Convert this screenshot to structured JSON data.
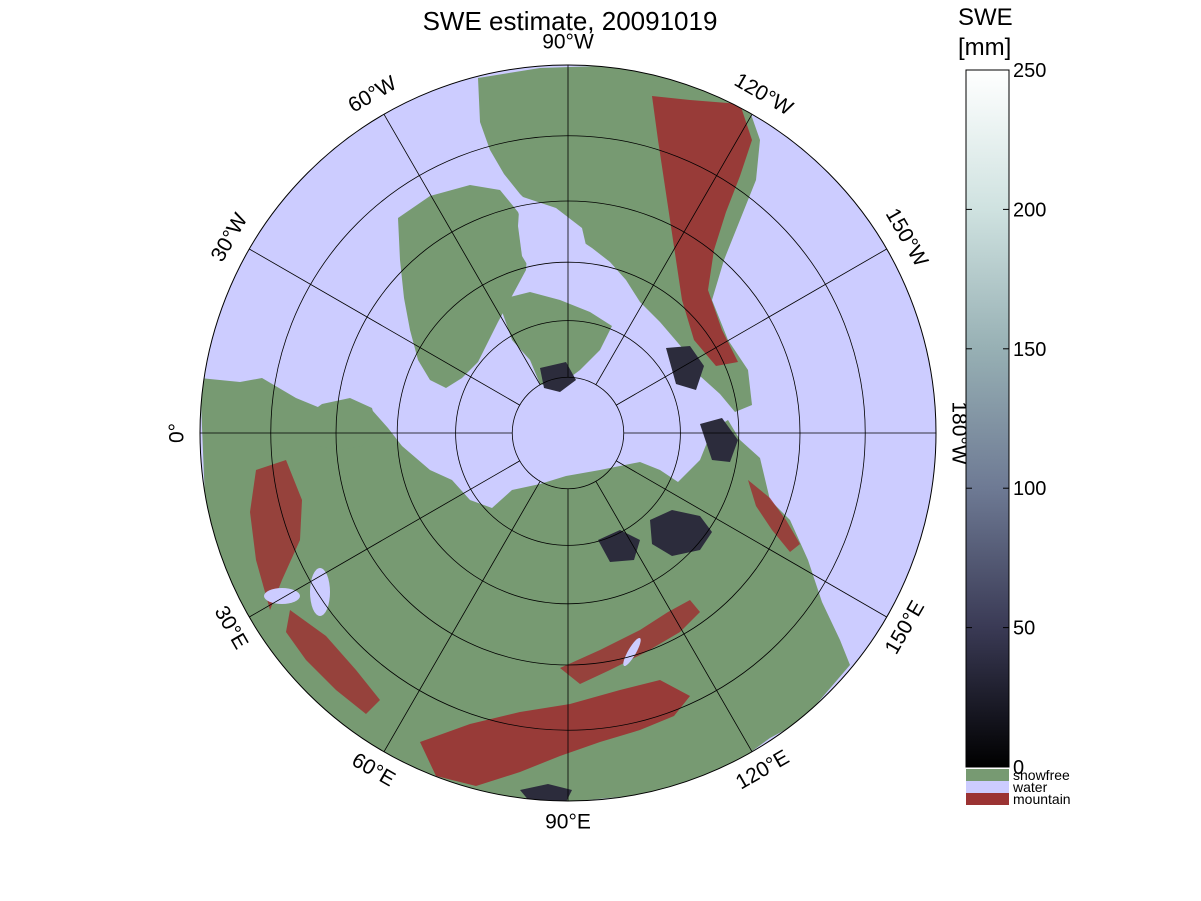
{
  "title": "SWE estimate, 20091019",
  "colorbar": {
    "title_lines": [
      "SWE",
      "[mm]"
    ],
    "ticks": [
      0,
      50,
      100,
      150,
      200,
      250
    ],
    "range": [
      0,
      250
    ],
    "gradient_colors": [
      "#000000",
      "#3a3a55",
      "#6e7a94",
      "#97b0b4",
      "#cfe2e0",
      "#ffffff"
    ],
    "categories": [
      {
        "label": "snowfree",
        "color": "#779a72"
      },
      {
        "label": "water",
        "color": "#ccccff"
      },
      {
        "label": "mountain",
        "color": "#9b3333"
      }
    ]
  },
  "map": {
    "projection": "north-polar-stereographic",
    "ocean_color": "#ccccff",
    "land_color": "#779a72",
    "mountain_color": "#9b3333",
    "snow_color": "#2c2c3c",
    "latitude_circles": [
      80,
      70,
      60,
      50,
      40,
      30
    ],
    "meridian_labels": [
      {
        "text": "90°W",
        "angle": -90
      },
      {
        "text": "120°W",
        "angle": -60
      },
      {
        "text": "150°W",
        "angle": -30
      },
      {
        "text": "180°W",
        "angle": 0
      },
      {
        "text": "150°E",
        "angle": 30
      },
      {
        "text": "120°E",
        "angle": 60
      },
      {
        "text": "90°E",
        "angle": 90
      },
      {
        "text": "60°E",
        "angle": 120
      },
      {
        "text": "30°E",
        "angle": 150
      },
      {
        "text": "0°",
        "angle": 180
      },
      {
        "text": "30°W",
        "angle": 210
      },
      {
        "text": "60°W",
        "angle": 240
      }
    ]
  }
}
